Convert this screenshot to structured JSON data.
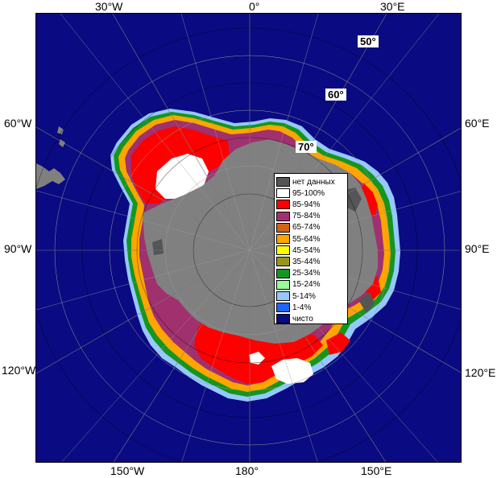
{
  "map": {
    "longitude_labels": {
      "top": [
        "30°W",
        "0°",
        "30°E"
      ],
      "left": [
        "60°W",
        "90°W",
        "120°W"
      ],
      "right": [
        "60°E",
        "90°E",
        "120°E"
      ],
      "bottom": [
        "150°W",
        "180°",
        "150°E"
      ]
    },
    "latitude_labels": [
      "50°",
      "60°",
      "70°"
    ],
    "colors": {
      "ocean": "#0a0a82",
      "land": "#808080",
      "no_data": "#555555",
      "ice_95_100": "#ffffff",
      "ice_85_94": "#ff0000",
      "ice_75_84": "#a0306e",
      "ice_65_74": "#d26414",
      "ice_55_64": "#ffa500",
      "ice_45_54": "#ffff00",
      "ice_35_44": "#96961e",
      "ice_25_34": "#14961e",
      "ice_15_24": "#96ff96",
      "ice_5_14": "#96c8ff",
      "ice_1_4": "#1e64ff",
      "clear": "#0a0a82"
    }
  },
  "legend": {
    "items": [
      {
        "label": "нет данных",
        "color": "#555555"
      },
      {
        "label": "95-100%",
        "color": "#ffffff"
      },
      {
        "label": "85-94%",
        "color": "#ff0000"
      },
      {
        "label": "75-84%",
        "color": "#a0306e"
      },
      {
        "label": "65-74%",
        "color": "#d26414"
      },
      {
        "label": "55-64%",
        "color": "#ffa500"
      },
      {
        "label": "45-54%",
        "color": "#ffff00"
      },
      {
        "label": "35-44%",
        "color": "#96961e"
      },
      {
        "label": "25-34%",
        "color": "#14961e"
      },
      {
        "label": "15-24%",
        "color": "#96ff96"
      },
      {
        "label": "5-14%",
        "color": "#96c8ff"
      },
      {
        "label": "1-4%",
        "color": "#1e64ff"
      },
      {
        "label": "чисто",
        "color": "#0a0a82"
      }
    ]
  }
}
